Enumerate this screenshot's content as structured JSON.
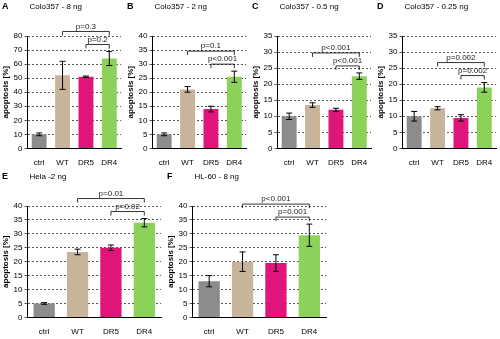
{
  "chart_data": [
    {
      "label": "A",
      "title": "Colo357 - 8 ng",
      "type": "bar",
      "y_label": "apoptosis [%]",
      "categories": [
        "ctrl",
        "WT",
        "DR5",
        "DR4"
      ],
      "values": [
        10,
        52,
        51,
        64
      ],
      "errors": [
        1,
        10,
        0.5,
        5
      ],
      "colors": [
        "#8c8c8c",
        "#c8b49b",
        "#e0157a",
        "#8cd15a"
      ],
      "ylim": [
        0,
        80
      ],
      "yticks": [
        0,
        10,
        20,
        30,
        40,
        50,
        60,
        70,
        80
      ],
      "grid": true,
      "comparisons": [
        {
          "from": "DR5",
          "to": "DR4",
          "label": "p=0.2"
        },
        {
          "from": "WT",
          "to": "DR4",
          "label": "p=0.3"
        }
      ]
    },
    {
      "label": "B",
      "title": "Colo357 - 2 ng",
      "type": "bar",
      "y_label": "apoptosis [%]",
      "categories": [
        "ctrl",
        "WT",
        "DR5",
        "DR4"
      ],
      "values": [
        5,
        21,
        14,
        25.5
      ],
      "errors": [
        0.5,
        1,
        1,
        2
      ],
      "colors": [
        "#8c8c8c",
        "#c8b49b",
        "#e0157a",
        "#8cd15a"
      ],
      "ylim": [
        0,
        40
      ],
      "yticks": [
        0,
        5,
        10,
        15,
        20,
        25,
        30,
        35,
        40
      ],
      "grid": true,
      "comparisons": [
        {
          "from": "DR5",
          "to": "DR4",
          "label": "p<0.001"
        },
        {
          "from": "WT",
          "to": "DR4",
          "label": "p=0.1"
        }
      ]
    },
    {
      "label": "C",
      "title": "Colo357 - 0.5 ng",
      "type": "bar",
      "y_label": "apoptosis [%]",
      "categories": [
        "ctrl",
        "WT",
        "DR5",
        "DR4"
      ],
      "values": [
        10,
        13.5,
        12,
        22.5
      ],
      "errors": [
        1,
        0.7,
        0.5,
        1
      ],
      "colors": [
        "#8c8c8c",
        "#c8b49b",
        "#e0157a",
        "#8cd15a"
      ],
      "ylim": [
        0,
        35
      ],
      "yticks": [
        0,
        5,
        10,
        15,
        20,
        25,
        30,
        35
      ],
      "grid": true,
      "comparisons": [
        {
          "from": "DR5",
          "to": "DR4",
          "label": "p<0.001"
        },
        {
          "from": "WT",
          "to": "DR4",
          "label": "p<0.001"
        }
      ]
    },
    {
      "label": "D",
      "title": "Colo357 - 0.25 ng",
      "type": "bar",
      "y_label": "apoptosis [%]",
      "categories": [
        "ctrl",
        "WT",
        "DR5",
        "DR4"
      ],
      "values": [
        10,
        12.5,
        9.5,
        19
      ],
      "errors": [
        1.5,
        0.5,
        1,
        1.5
      ],
      "colors": [
        "#8c8c8c",
        "#c8b49b",
        "#e0157a",
        "#8cd15a"
      ],
      "ylim": [
        0,
        35
      ],
      "yticks": [
        0,
        5,
        10,
        15,
        20,
        25,
        30,
        35
      ],
      "grid": true,
      "comparisons": [
        {
          "from": "DR5",
          "to": "DR4",
          "label": "p=0.002"
        },
        {
          "from": "WT",
          "to": "DR4",
          "label": "p=0.002"
        }
      ]
    },
    {
      "label": "E",
      "title": "Hela -2 ng",
      "type": "bar",
      "y_label": "apoptosis [%]",
      "categories": [
        "ctrl",
        "WT",
        "DR5",
        "DR4"
      ],
      "values": [
        5,
        23.5,
        25,
        34
      ],
      "errors": [
        0.3,
        1,
        1,
        1.5
      ],
      "colors": [
        "#8c8c8c",
        "#c8b49b",
        "#e0157a",
        "#8cd15a"
      ],
      "ylim": [
        0,
        40
      ],
      "yticks": [
        0,
        5,
        10,
        15,
        20,
        25,
        30,
        35,
        40
      ],
      "grid": true,
      "comparisons": [
        {
          "from": "DR5",
          "to": "DR4",
          "label": "p=0.02"
        },
        {
          "from": "WT",
          "to": "DR4",
          "label": "p=0.01"
        }
      ]
    },
    {
      "label": "F",
      "title": "HL-60 - 8 ng",
      "type": "bar",
      "y_label": "apoptosis [%]",
      "categories": [
        "ctrl",
        "WT",
        "DR5",
        "DR4"
      ],
      "values": [
        13,
        20,
        19.5,
        29.5
      ],
      "errors": [
        2,
        3.5,
        3,
        4
      ],
      "colors": [
        "#8c8c8c",
        "#c8b49b",
        "#e0157a",
        "#8cd15a"
      ],
      "ylim": [
        0,
        40
      ],
      "yticks": [
        0,
        5,
        10,
        15,
        20,
        25,
        30,
        35,
        40
      ],
      "grid": true,
      "comparisons": [
        {
          "from": "DR5",
          "to": "DR4",
          "label": "p=0.001"
        },
        {
          "from": "WT",
          "to": "DR4",
          "label": "p<0.001"
        }
      ]
    }
  ]
}
